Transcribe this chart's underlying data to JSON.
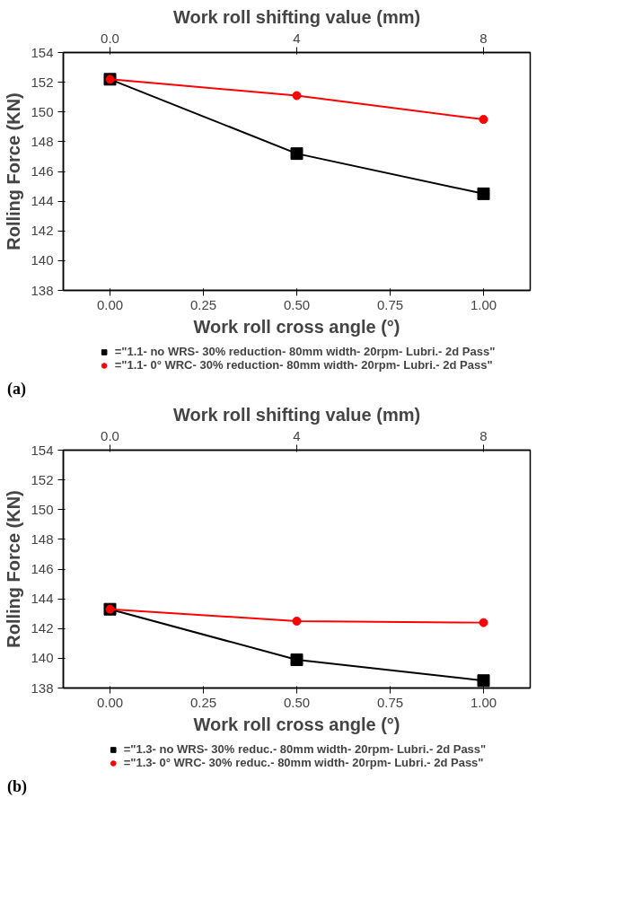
{
  "chart_data": [
    {
      "type": "line",
      "title": "Work roll shifting value (mm)",
      "xlabel": "Work roll cross angle (°)",
      "ylabel": "Rolling Force (KN)",
      "x": [
        0,
        0.5,
        1
      ],
      "xlim": [
        -0.125,
        1.125
      ],
      "xticks": [
        {
          "value": 0,
          "label": "0.00"
        },
        {
          "value": 0.25,
          "label": "0.25"
        },
        {
          "value": 0.5,
          "label": "0.50"
        },
        {
          "value": 0.75,
          "label": "0.75"
        },
        {
          "value": 1,
          "label": "1.00"
        }
      ],
      "x2lim": [
        -1,
        9
      ],
      "x2ticks": [
        {
          "value": 0,
          "label": "0.0"
        },
        4,
        8
      ],
      "ylim": [
        138,
        154
      ],
      "yticks": [
        138,
        140,
        142,
        144,
        146,
        148,
        150,
        152,
        154
      ],
      "series": [
        {
          "name": "=\"1.1- no WRS- 30% reduction- 80mm width- 20rpm- Lubri.- 2d Pass\"",
          "color": "#000000",
          "marker": "square",
          "values": [
            152.2,
            147.2,
            144.5
          ]
        },
        {
          "name": "=\"1.1- 0° WRC- 30% reduction- 80mm width- 20rpm- Lubri.- 2d Pass\"",
          "color": "#ff0000",
          "marker": "circle",
          "values": [
            152.2,
            151.1,
            149.5
          ]
        }
      ],
      "legend": "bottom",
      "grid": false,
      "annotations": [
        "(a)"
      ]
    },
    {
      "type": "line",
      "title": "Work roll shifting value (mm)",
      "xlabel": "Work roll cross angle (°)",
      "ylabel": "Rolling Force (KN)",
      "x": [
        0,
        0.5,
        1
      ],
      "xlim": [
        -0.125,
        1.125
      ],
      "xticks": [
        {
          "value": 0,
          "label": "0.00"
        },
        {
          "value": 0.25,
          "label": "0.25"
        },
        {
          "value": 0.5,
          "label": "0.50"
        },
        {
          "value": 0.75,
          "label": "0.75"
        },
        {
          "value": 1,
          "label": "1.00"
        }
      ],
      "x2lim": [
        -1,
        9
      ],
      "x2ticks": [
        {
          "value": 0,
          "label": "0.0"
        },
        4,
        8
      ],
      "ylim": [
        138,
        154
      ],
      "yticks": [
        138,
        140,
        142,
        144,
        146,
        148,
        150,
        152,
        154
      ],
      "series": [
        {
          "name": "=\"1.3- no WRS- 30% reduc.- 80mm width- 20rpm- Lubri.- 2d Pass\"",
          "color": "#000000",
          "marker": "square",
          "values": [
            143.3,
            139.9,
            138.5
          ]
        },
        {
          "name": "=\"1.3- 0° WRC- 30% reduc.- 80mm width- 20rpm- Lubri.- 2d Pass\"",
          "color": "#ff0000",
          "marker": "circle",
          "values": [
            143.3,
            142.5,
            142.4
          ]
        }
      ],
      "legend": "bottom",
      "grid": false,
      "annotations": [
        "(b)"
      ]
    }
  ]
}
